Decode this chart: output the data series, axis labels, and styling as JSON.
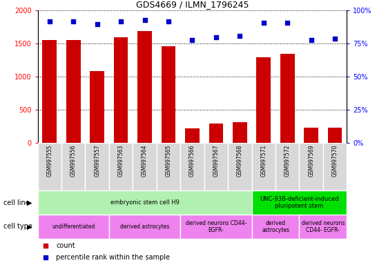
{
  "title": "GDS4669 / ILMN_1796245",
  "samples": [
    "GSM997555",
    "GSM997556",
    "GSM997557",
    "GSM997563",
    "GSM997564",
    "GSM997565",
    "GSM997566",
    "GSM997567",
    "GSM997568",
    "GSM997571",
    "GSM997572",
    "GSM997569",
    "GSM997570"
  ],
  "counts": [
    1560,
    1555,
    1085,
    1600,
    1690,
    1460,
    220,
    300,
    320,
    1300,
    1350,
    230,
    235
  ],
  "percentiles": [
    92,
    92,
    90,
    92,
    93,
    92,
    78,
    80,
    81,
    91,
    91,
    78,
    79
  ],
  "ylim_left": [
    0,
    2000
  ],
  "ylim_right": [
    0,
    100
  ],
  "yticks_left": [
    0,
    500,
    1000,
    1500,
    2000
  ],
  "yticks_right": [
    0,
    25,
    50,
    75,
    100
  ],
  "bar_color": "#cc0000",
  "dot_color": "#0000cc",
  "cell_line_groups": [
    {
      "label": "embryonic stem cell H9",
      "start": 0,
      "end": 9,
      "color": "#b0f0b0"
    },
    {
      "label": "UNC-93B-deficient-induced\npluripotent stem",
      "start": 9,
      "end": 13,
      "color": "#00e000"
    }
  ],
  "cell_type_groups": [
    {
      "label": "undifferentiated",
      "start": 0,
      "end": 3,
      "color": "#ee82ee"
    },
    {
      "label": "derived astrocytes",
      "start": 3,
      "end": 6,
      "color": "#ee82ee"
    },
    {
      "label": "derived neurons CD44-\nEGFR-",
      "start": 6,
      "end": 9,
      "color": "#ee82ee"
    },
    {
      "label": "derived\nastrocytes",
      "start": 9,
      "end": 11,
      "color": "#ee82ee"
    },
    {
      "label": "derived neurons\nCD44- EGFR-",
      "start": 11,
      "end": 13,
      "color": "#ee82ee"
    }
  ],
  "bg_color": "#d8d8d8",
  "legend_count_color": "#cc0000",
  "legend_dot_color": "#0000cc"
}
